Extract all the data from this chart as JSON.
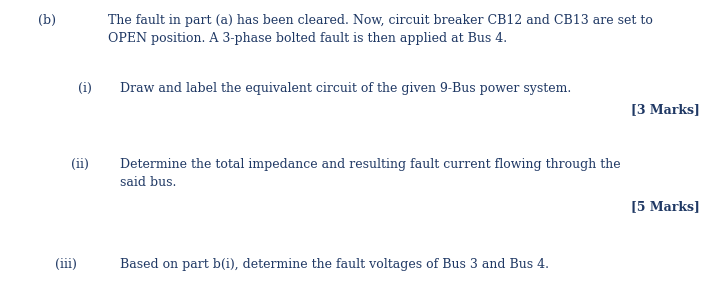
{
  "background_color": "#ffffff",
  "text_color": "#1f3864",
  "font_family": "DejaVu Serif",
  "label_b": "(b)",
  "line_b1": "The fault in part (a) has been cleared. Now, circuit breaker CB12 and CB13 are set to",
  "line_b2": "OPEN position. A 3-phase bolted fault is then applied at Bus 4.",
  "label_i": "(i)",
  "line_i": "Draw and label the equivalent circuit of the given 9-Bus power system.",
  "marks_i": "[3 Marks]",
  "label_ii": "(ii)",
  "line_ii1": "Determine the total impedance and resulting fault current flowing through the",
  "line_ii2": "said bus.",
  "marks_ii": "[5 Marks]",
  "label_iii": "(iii)",
  "line_iii": "Based on part b(i), determine the fault voltages of Bus 3 and Bus 4.",
  "font_size": 9.0,
  "font_size_marks": 9.0,
  "fig_width": 7.27,
  "fig_height": 3.05,
  "dpi": 100
}
